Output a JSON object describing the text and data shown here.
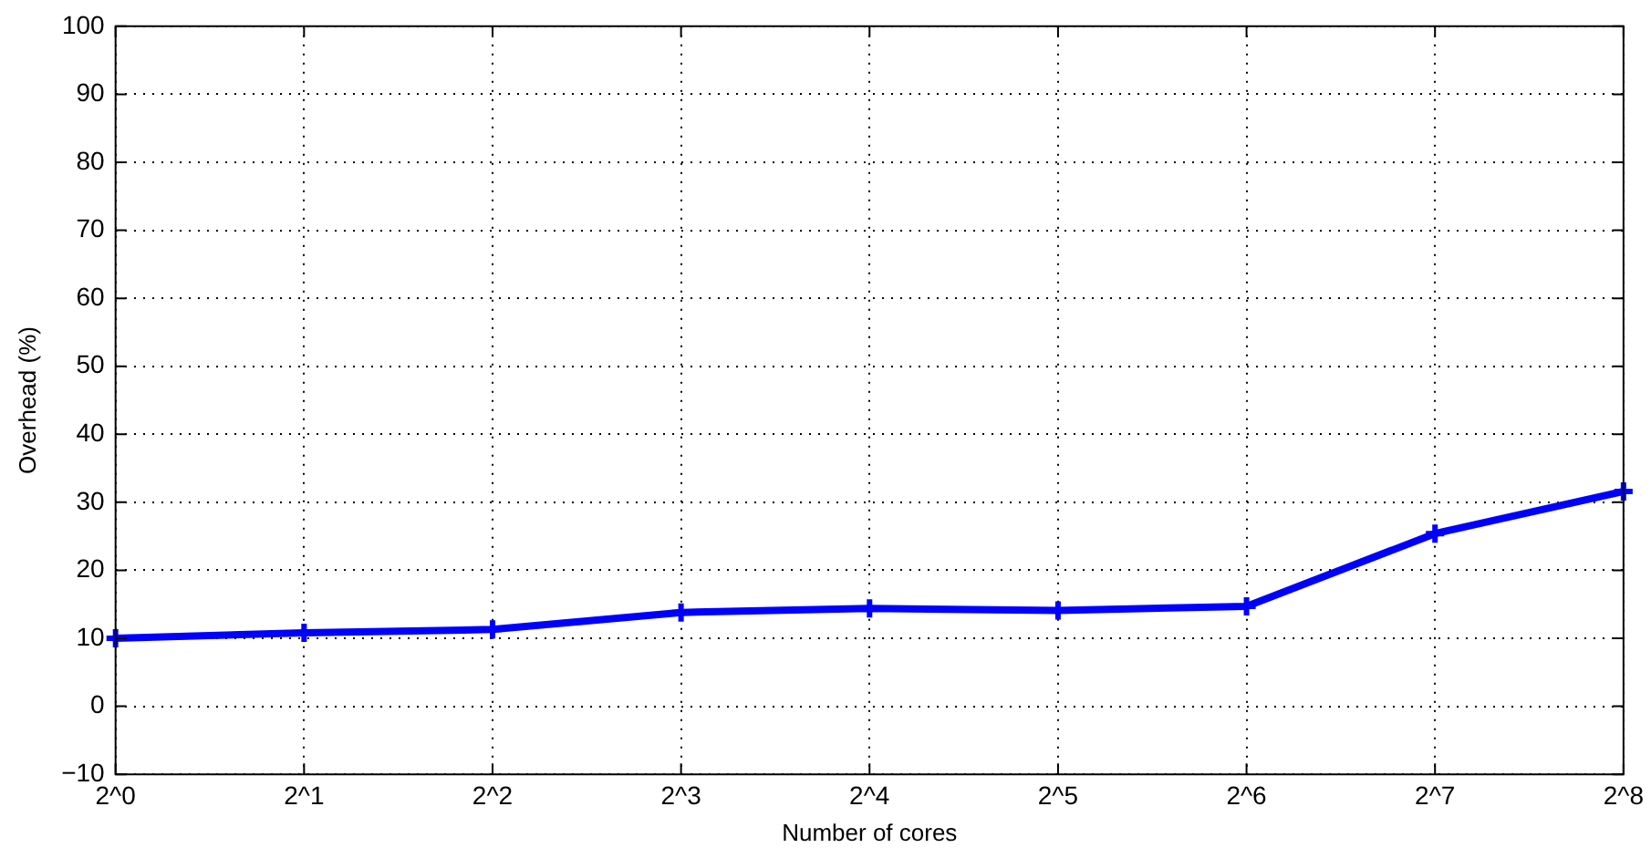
{
  "chart_data": {
    "type": "line",
    "xlabel": "Number of cores",
    "ylabel": "Overhead (%)",
    "categories": [
      "2^0",
      "2^1",
      "2^2",
      "2^3",
      "2^4",
      "2^5",
      "2^6",
      "2^7",
      "2^8"
    ],
    "series": [
      {
        "color": "#0000ff",
        "values": [
          10,
          10.8,
          11.3,
          13.8,
          14.4,
          14.1,
          14.7,
          25.4,
          31.6
        ]
      }
    ],
    "ylim": [
      -10,
      100
    ],
    "yticks": [
      -10,
      0,
      10,
      20,
      30,
      40,
      50,
      60,
      70,
      80,
      90,
      100
    ],
    "grid": true,
    "marker": "cross",
    "line_style": "solid",
    "legend": false
  }
}
